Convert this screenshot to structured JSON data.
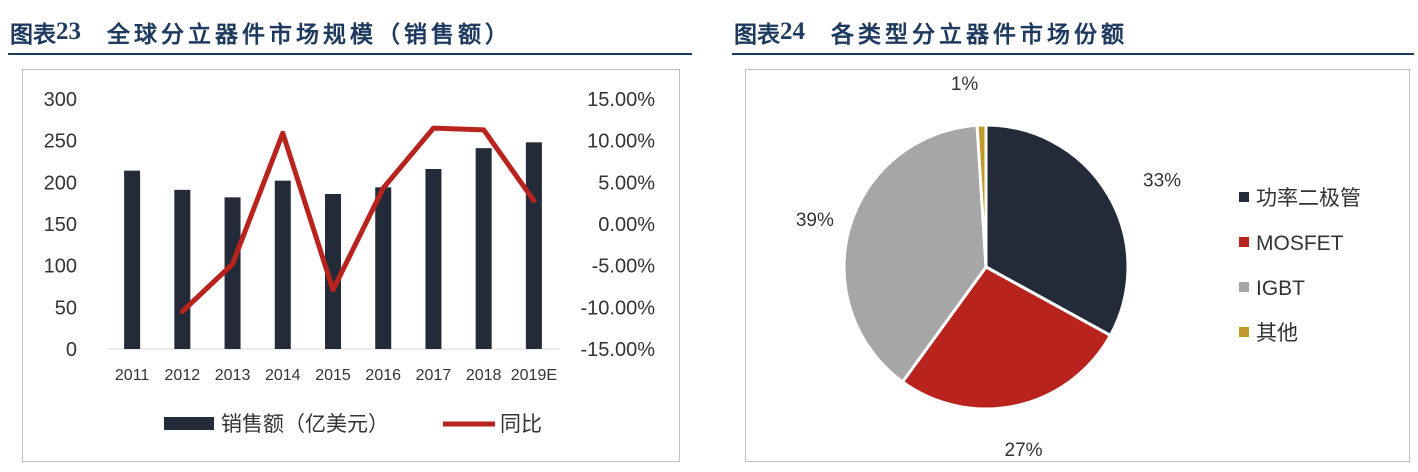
{
  "left_panel": {
    "fig_label": "图表",
    "fig_number": "23",
    "title": "全球分立器件市场规模（销售额）"
  },
  "right_panel": {
    "fig_label": "图表",
    "fig_number": "24",
    "title": "各类型分立器件市场份额"
  },
  "chart_data": [
    {
      "type": "bar",
      "categories": [
        "2011",
        "2012",
        "2013",
        "2014",
        "2015",
        "2016",
        "2017",
        "2018",
        "2019E"
      ],
      "series": [
        {
          "name": "销售额（亿美元）",
          "kind": "bar",
          "axis": "left",
          "color": "#232b38",
          "values": [
            214,
            191,
            182,
            202,
            186,
            194,
            216,
            241,
            248
          ]
        },
        {
          "name": "同比",
          "kind": "line",
          "axis": "right",
          "color": "#b8231e",
          "values": [
            null,
            -10.5,
            -4.8,
            10.9,
            -7.9,
            4.3,
            11.5,
            11.3,
            2.8
          ]
        }
      ],
      "ylim_left": [
        0,
        300
      ],
      "yticks_left": [
        "0",
        "50",
        "100",
        "150",
        "200",
        "250",
        "300"
      ],
      "ylim_right": [
        -15,
        15
      ],
      "yticks_right": [
        "-15.00%",
        "-10.00%",
        "-5.00%",
        "0.00%",
        "5.00%",
        "10.00%",
        "15.00%"
      ],
      "grid": false,
      "legend_position": "bottom"
    },
    {
      "type": "pie",
      "labels": [
        "功率二极管",
        "MOSFET",
        "IGBT",
        "其他"
      ],
      "values": [
        33,
        27,
        39,
        1
      ],
      "data_labels": [
        "33%",
        "27%",
        "39%",
        "1%"
      ],
      "colors": [
        "#232b38",
        "#b8231e",
        "#a6a6a6",
        "#bf9a2b"
      ],
      "legend_position": "right"
    }
  ]
}
